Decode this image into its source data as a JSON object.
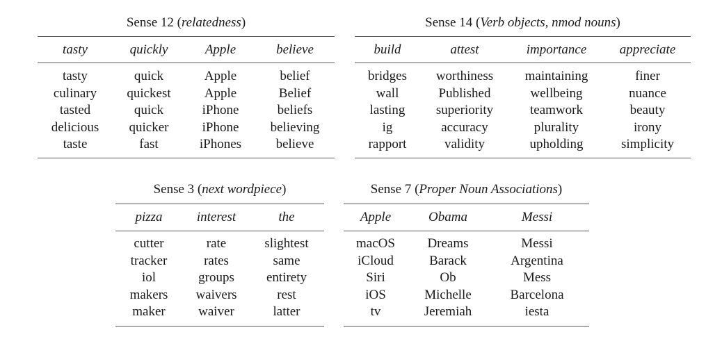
{
  "tables": [
    {
      "caption_prefix": "Sense 12 (",
      "caption_italic": "relatedness",
      "caption_suffix": ")",
      "headers": [
        "tasty",
        "quickly",
        "Apple",
        "believe"
      ],
      "columns": [
        [
          "tasty",
          "culinary",
          "tasted",
          "delicious",
          "taste"
        ],
        [
          "quick",
          "quickest",
          "quick",
          "quicker",
          "fast"
        ],
        [
          "Apple",
          "Apple",
          "iPhone",
          "iPhone",
          "iPhones"
        ],
        [
          "belief",
          "Belief",
          "beliefs",
          "believing",
          "believe"
        ]
      ]
    },
    {
      "caption_prefix": "Sense 14 (",
      "caption_italic": "Verb objects, nmod nouns",
      "caption_suffix": ")",
      "headers": [
        "build",
        "attest",
        "importance",
        "appreciate"
      ],
      "columns": [
        [
          "bridges",
          "wall",
          "lasting",
          "ig",
          "rapport"
        ],
        [
          "worthiness",
          "Published",
          "superiority",
          "accuracy",
          "validity"
        ],
        [
          "maintaining",
          "wellbeing",
          "teamwork",
          "plurality",
          "upholding"
        ],
        [
          "finer",
          "nuance",
          "beauty",
          "irony",
          "simplicity"
        ]
      ]
    },
    {
      "caption_prefix": "Sense 3 (",
      "caption_italic": "next wordpiece",
      "caption_suffix": ")",
      "headers": [
        "pizza",
        "interest",
        "the"
      ],
      "columns": [
        [
          "cutter",
          "tracker",
          "iol",
          "makers",
          "maker"
        ],
        [
          "rate",
          "rates",
          "groups",
          "waivers",
          "waiver"
        ],
        [
          "slightest",
          "same",
          "entirety",
          "rest",
          "latter"
        ]
      ]
    },
    {
      "caption_prefix": "Sense 7 (",
      "caption_italic": "Proper Noun Associations",
      "caption_suffix": ")",
      "headers": [
        "Apple",
        "Obama",
        "Messi"
      ],
      "columns": [
        [
          "macOS",
          "iCloud",
          "Siri",
          "iOS",
          "tv"
        ],
        [
          "Dreams",
          "Barack",
          "Ob",
          "Michelle",
          "Jeremiah"
        ],
        [
          "Messi",
          "Argentina",
          "Mess",
          "Barcelona",
          "iesta"
        ]
      ]
    }
  ]
}
